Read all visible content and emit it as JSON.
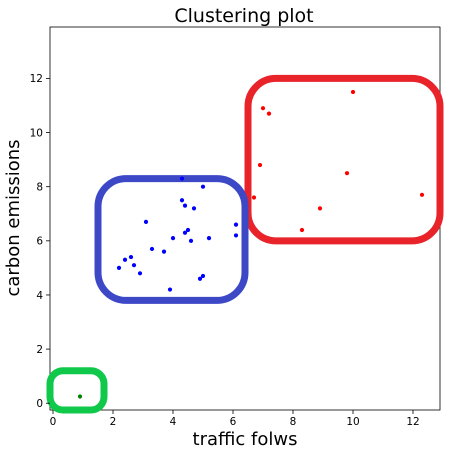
{
  "chart_data": {
    "type": "scatter",
    "title": "Clustering plot",
    "xlabel": "traffic folws",
    "ylabel": "carbon emissions",
    "xlim": [
      -0.1,
      12.9
    ],
    "ylim": [
      -0.25,
      13.9
    ],
    "xticks": [
      0,
      2,
      4,
      6,
      8,
      10,
      12
    ],
    "yticks": [
      0,
      2,
      4,
      6,
      8,
      10,
      12
    ],
    "grid": false,
    "series": [
      {
        "color": "#0000ff",
        "points": [
          [
            4.3,
            8.3
          ],
          [
            5.0,
            8.0
          ],
          [
            4.3,
            7.5
          ],
          [
            4.4,
            7.3
          ],
          [
            4.7,
            7.2
          ],
          [
            3.1,
            6.7
          ],
          [
            6.1,
            6.6
          ],
          [
            4.5,
            6.4
          ],
          [
            4.4,
            6.3
          ],
          [
            6.1,
            6.2
          ],
          [
            4.0,
            6.1
          ],
          [
            5.2,
            6.1
          ],
          [
            4.6,
            6.0
          ],
          [
            3.3,
            5.7
          ],
          [
            3.7,
            5.6
          ],
          [
            2.6,
            5.4
          ],
          [
            2.4,
            5.3
          ],
          [
            2.7,
            5.1
          ],
          [
            2.2,
            5.0
          ],
          [
            2.9,
            4.8
          ],
          [
            5.0,
            4.7
          ],
          [
            4.9,
            4.6
          ],
          [
            3.9,
            4.2
          ]
        ]
      },
      {
        "color": "#ff0000",
        "points": [
          [
            10.0,
            11.5
          ],
          [
            7.0,
            10.9
          ],
          [
            7.2,
            10.7
          ],
          [
            6.9,
            8.8
          ],
          [
            9.8,
            8.5
          ],
          [
            12.3,
            7.7
          ],
          [
            6.7,
            7.6
          ],
          [
            8.9,
            7.2
          ],
          [
            8.3,
            6.4
          ]
        ]
      },
      {
        "color": "#008000",
        "points": [
          [
            0.9,
            0.25
          ]
        ]
      }
    ],
    "cluster_boxes": [
      {
        "color": "#e8232a",
        "x": [
          6.5,
          12.9
        ],
        "y": [
          6.0,
          12.0
        ]
      },
      {
        "color": "#3d48c7",
        "x": [
          1.5,
          6.4
        ],
        "y": [
          3.8,
          8.3
        ]
      },
      {
        "color": "#10c84a",
        "x": [
          -0.1,
          1.7
        ],
        "y": [
          -0.25,
          1.2
        ]
      }
    ]
  }
}
